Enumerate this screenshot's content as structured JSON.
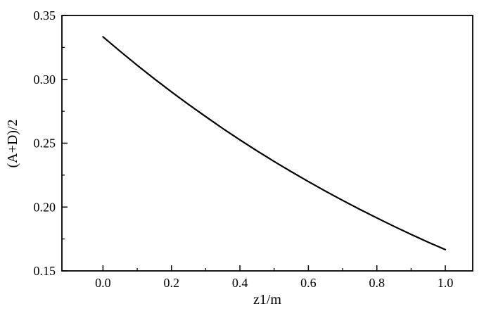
{
  "chart_data": {
    "type": "line",
    "title": "",
    "xlabel": "z1/m",
    "ylabel": "(A+D)/2",
    "x": [
      0.0,
      0.05,
      0.1,
      0.15,
      0.2,
      0.25,
      0.3,
      0.35,
      0.4,
      0.45,
      0.5,
      0.55,
      0.6,
      0.65,
      0.7,
      0.75,
      0.8,
      0.85,
      0.9,
      0.95,
      1.0
    ],
    "y": [
      0.3333,
      0.322,
      0.311,
      0.3004,
      0.2902,
      0.2803,
      0.2708,
      0.2615,
      0.2526,
      0.244,
      0.2357,
      0.2277,
      0.2199,
      0.2124,
      0.2052,
      0.1982,
      0.1915,
      0.1849,
      0.1786,
      0.1725,
      0.1667
    ],
    "xlim": [
      -0.12,
      1.08
    ],
    "ylim": [
      0.15,
      0.35
    ],
    "x_ticks": {
      "values": [
        0.0,
        0.2,
        0.4,
        0.6,
        0.8,
        1.0
      ],
      "labels": [
        "0.0",
        "0.2",
        "0.4",
        "0.6",
        "0.8",
        "1.0"
      ]
    },
    "y_ticks": {
      "values": [
        0.15,
        0.2,
        0.25,
        0.3,
        0.35
      ],
      "labels": [
        "0.15",
        "0.20",
        "0.25",
        "0.30",
        "0.35"
      ]
    },
    "x_minor_ticks": [
      0.1,
      0.3,
      0.5,
      0.7,
      0.9
    ],
    "y_minor_ticks": [
      0.175,
      0.225,
      0.275,
      0.325
    ],
    "line_color": "#000000",
    "axis_color": "#000000",
    "grid": false,
    "legend": "none"
  }
}
